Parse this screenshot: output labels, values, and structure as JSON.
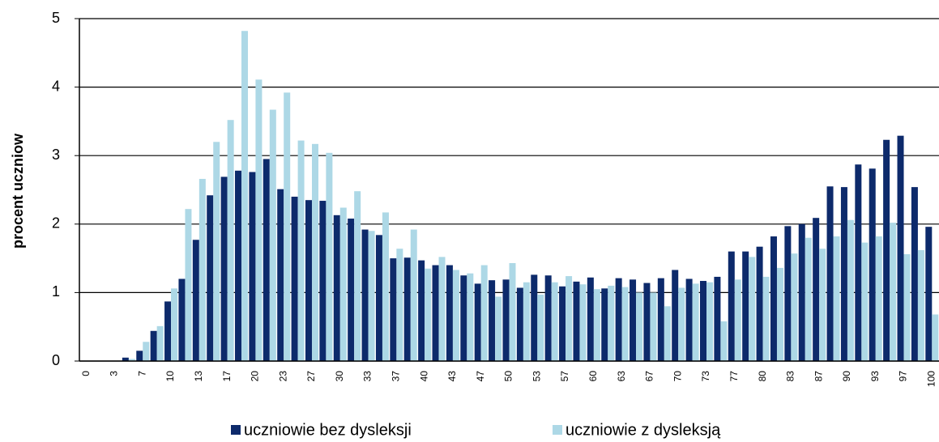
{
  "chart_data": {
    "type": "bar",
    "y_label": "procent uczniow",
    "categories": [
      "0",
      null,
      "3",
      null,
      "7",
      null,
      "10",
      null,
      "13",
      null,
      "17",
      null,
      "20",
      null,
      "23",
      null,
      "27",
      null,
      "30",
      null,
      "33",
      null,
      "37",
      null,
      "40",
      null,
      "43",
      null,
      "47",
      null,
      "50",
      null,
      "53",
      null,
      "57",
      null,
      "60",
      null,
      "63",
      null,
      "67",
      null,
      "70",
      null,
      "73",
      null,
      "77",
      null,
      "80",
      null,
      "83",
      null,
      "87",
      null,
      "90",
      null,
      "93",
      null,
      "97",
      null,
      "100"
    ],
    "series": [
      {
        "name": "uczniowie bez dysleksji",
        "color": "#0d2a6b",
        "values": [
          0,
          0,
          0,
          0.05,
          0.15,
          0.44,
          0.87,
          1.2,
          1.77,
          2.42,
          2.69,
          2.78,
          2.76,
          2.95,
          2.51,
          2.4,
          2.35,
          2.34,
          2.13,
          2.08,
          1.92,
          1.84,
          1.5,
          1.51,
          1.47,
          1.4,
          1.4,
          1.25,
          1.13,
          1.18,
          1.19,
          1.07,
          1.26,
          1.25,
          1.09,
          1.16,
          1.22,
          1.06,
          1.21,
          1.19,
          1.14,
          1.21,
          1.33,
          1.2,
          1.17,
          1.23,
          1.6,
          1.6,
          1.67,
          1.82,
          1.97,
          2.0,
          2.09,
          2.55,
          2.54,
          2.87,
          2.81,
          3.23,
          3.29,
          2.54,
          1.96
        ]
      },
      {
        "name": "uczniowie z dysleksją",
        "color": "#add8e6",
        "values": [
          0,
          0,
          0,
          0.03,
          0.28,
          0.51,
          1.06,
          2.22,
          2.66,
          3.2,
          3.52,
          4.82,
          4.11,
          3.67,
          3.92,
          3.22,
          3.17,
          3.04,
          2.24,
          2.48,
          1.9,
          2.17,
          1.64,
          1.92,
          1.35,
          1.52,
          1.33,
          1.28,
          1.4,
          0.94,
          1.43,
          1.15,
          0.97,
          1.15,
          1.24,
          1.12,
          1.05,
          1.1,
          1.08,
          1.0,
          1.0,
          0.8,
          1.07,
          1.13,
          1.15,
          0.58,
          1.19,
          1.52,
          1.23,
          1.36,
          1.57,
          1.8,
          1.64,
          1.82,
          2.06,
          1.73,
          1.82,
          2.02,
          1.56,
          1.62,
          0.68
        ]
      }
    ],
    "ylim": [
      0,
      5
    ],
    "yticks": [
      0,
      1,
      2,
      3,
      4,
      5
    ],
    "grid": true
  }
}
